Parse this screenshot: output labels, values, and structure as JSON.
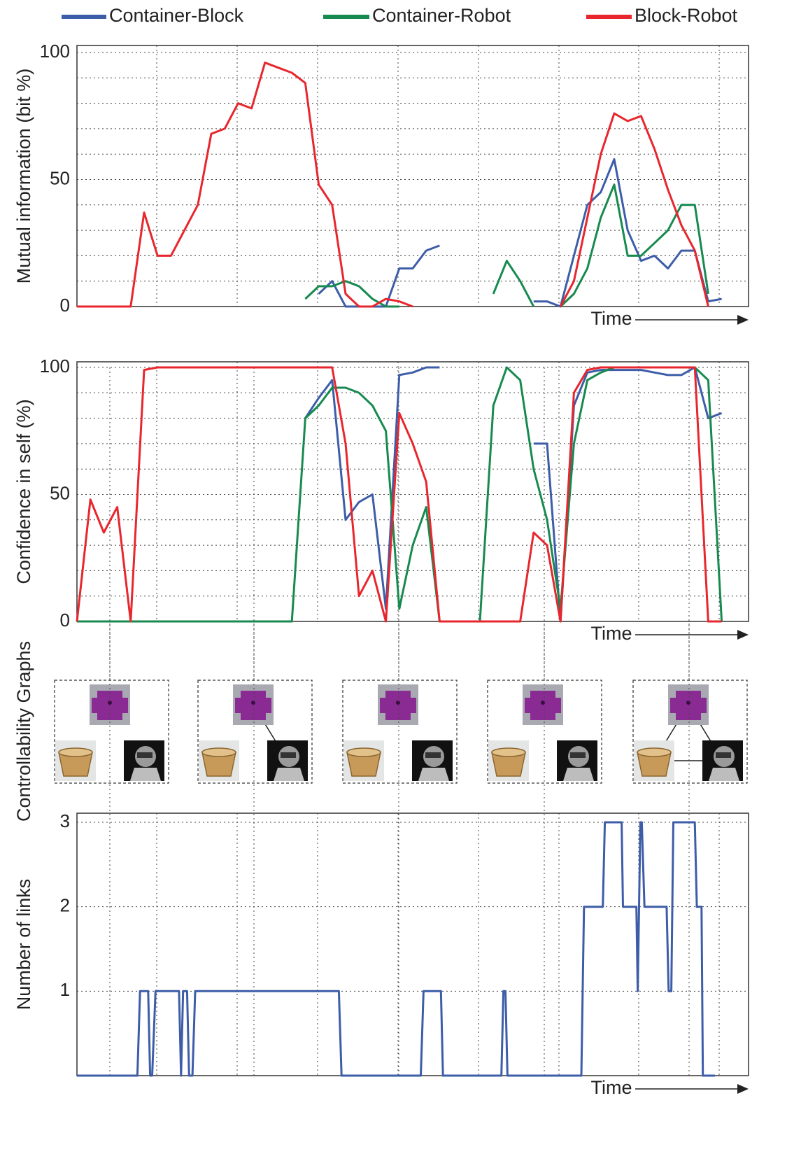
{
  "chart_data": [
    {
      "type": "line",
      "ylabel": "Mutual information (bit %)",
      "xlabel": "Time",
      "legend": "top",
      "grid": true,
      "xlim": [
        0,
        100
      ],
      "ylim": [
        0,
        100
      ],
      "yticks": [
        0,
        50,
        100
      ],
      "minor_yticks": [
        10,
        20,
        30,
        40,
        60,
        70,
        80,
        90
      ],
      "x": [
        0,
        2,
        4,
        6,
        8,
        10,
        12,
        14,
        16,
        18,
        20,
        22,
        24,
        26,
        28,
        30,
        32,
        34,
        36,
        38,
        40,
        42,
        44,
        46,
        48,
        50,
        52,
        54,
        56,
        58,
        60,
        62,
        64,
        66,
        68,
        70,
        72,
        74,
        76,
        78,
        80,
        82,
        84,
        86,
        88,
        90,
        92,
        94,
        96,
        98,
        100
      ],
      "series": [
        {
          "name": "Container-Block",
          "color": "#3d5da8",
          "values": [
            null,
            null,
            null,
            null,
            null,
            null,
            null,
            null,
            null,
            null,
            null,
            null,
            null,
            null,
            null,
            null,
            null,
            null,
            5,
            10,
            0,
            0,
            0,
            0,
            15,
            15,
            22,
            24,
            null,
            null,
            null,
            null,
            null,
            null,
            2,
            2,
            0,
            20,
            40,
            45,
            58,
            30,
            18,
            20,
            15,
            22,
            22,
            2,
            3,
            null,
            null
          ]
        },
        {
          "name": "Container-Robot",
          "color": "#178a4f",
          "values": [
            null,
            null,
            null,
            null,
            null,
            null,
            null,
            null,
            null,
            null,
            null,
            null,
            null,
            null,
            null,
            null,
            null,
            3,
            8,
            8,
            10,
            8,
            3,
            0,
            0,
            null,
            null,
            null,
            null,
            null,
            null,
            5,
            18,
            10,
            0,
            null,
            0,
            5,
            15,
            35,
            48,
            20,
            20,
            25,
            30,
            40,
            40,
            5,
            null,
            null,
            null
          ]
        },
        {
          "name": "Block-Robot",
          "color": "#e8262d",
          "values": [
            0,
            0,
            0,
            0,
            0,
            37,
            20,
            20,
            30,
            40,
            68,
            70,
            80,
            78,
            96,
            94,
            92,
            88,
            48,
            40,
            5,
            0,
            0,
            3,
            2,
            0,
            null,
            null,
            null,
            null,
            null,
            null,
            null,
            null,
            null,
            null,
            0,
            10,
            35,
            60,
            76,
            73,
            75,
            62,
            46,
            32,
            22,
            0,
            null,
            null,
            null
          ]
        }
      ]
    },
    {
      "type": "line",
      "ylabel": "Confidence in self (%)",
      "xlabel": "Time",
      "grid": true,
      "xlim": [
        0,
        100
      ],
      "ylim": [
        0,
        100
      ],
      "yticks": [
        0,
        50,
        100
      ],
      "minor_yticks": [
        10,
        20,
        30,
        40,
        60,
        70,
        80,
        90
      ],
      "x": [
        0,
        2,
        4,
        6,
        8,
        10,
        12,
        14,
        16,
        18,
        20,
        22,
        24,
        26,
        28,
        30,
        32,
        34,
        36,
        38,
        40,
        42,
        44,
        46,
        48,
        50,
        52,
        54,
        56,
        58,
        60,
        62,
        64,
        66,
        68,
        70,
        72,
        74,
        76,
        78,
        80,
        82,
        84,
        86,
        88,
        90,
        92,
        94,
        96,
        98,
        100
      ],
      "series": [
        {
          "color": "#3d5da8",
          "values": [
            null,
            null,
            null,
            null,
            null,
            null,
            null,
            null,
            null,
            null,
            null,
            null,
            null,
            null,
            null,
            null,
            null,
            80,
            88,
            95,
            40,
            47,
            50,
            5,
            97,
            98,
            100,
            100,
            null,
            null,
            null,
            null,
            null,
            null,
            70,
            70,
            0,
            85,
            98,
            99,
            99,
            99,
            99,
            98,
            97,
            97,
            100,
            80,
            82,
            null,
            null
          ]
        },
        {
          "color": "#178a4f",
          "values": [
            0,
            0,
            0,
            0,
            0,
            0,
            0,
            0,
            0,
            0,
            0,
            0,
            0,
            0,
            0,
            0,
            0,
            80,
            85,
            92,
            92,
            90,
            85,
            75,
            5,
            30,
            45,
            0,
            0,
            0,
            0,
            85,
            100,
            95,
            60,
            40,
            5,
            70,
            95,
            98,
            100,
            100,
            100,
            100,
            100,
            100,
            100,
            95,
            0,
            null,
            null
          ]
        },
        {
          "color": "#e8262d",
          "values": [
            0,
            48,
            35,
            45,
            0,
            99,
            100,
            100,
            100,
            100,
            100,
            100,
            100,
            100,
            100,
            100,
            100,
            100,
            100,
            100,
            70,
            10,
            20,
            0,
            82,
            70,
            55,
            0,
            0,
            0,
            0,
            0,
            0,
            0,
            35,
            30,
            0,
            90,
            99,
            100,
            100,
            100,
            100,
            100,
            100,
            100,
            100,
            0,
            0,
            null,
            null
          ]
        }
      ]
    },
    {
      "type": "line",
      "ylabel": "Number of links",
      "xlabel": "Time",
      "grid": true,
      "xlim": [
        0,
        100
      ],
      "ylim": [
        0,
        3
      ],
      "yticks": [
        1,
        2,
        3
      ],
      "x": [
        0,
        9,
        9.4,
        10.6,
        10.9,
        11.2,
        11.7,
        15.2,
        15.5,
        15.8,
        16.4,
        16.7,
        17.2,
        17.6,
        39,
        39.4,
        51.2,
        51.6,
        54.2,
        54.5,
        63.2,
        63.5,
        63.8,
        64.1,
        75.1,
        75.5,
        78.3,
        78.6,
        81.1,
        81.3,
        83.3,
        83.5,
        83.9,
        84.1,
        84.5,
        84.8,
        87.8,
        88.1,
        88.5,
        88.8,
        92,
        92.3,
        93,
        93.2,
        95
      ],
      "series": [
        {
          "color": "#3d5da8",
          "values": [
            0,
            0,
            1,
            1,
            0,
            0,
            1,
            1,
            0,
            1,
            1,
            0,
            0,
            1,
            1,
            0,
            0,
            1,
            1,
            0,
            0,
            1,
            1,
            0,
            0,
            2,
            2,
            3,
            3,
            2,
            2,
            1,
            3,
            3,
            2,
            2,
            2,
            1,
            1,
            3,
            3,
            2,
            2,
            0,
            0
          ]
        }
      ]
    }
  ],
  "controllability_graphs": {
    "label": "Controllability Graphs"
  }
}
